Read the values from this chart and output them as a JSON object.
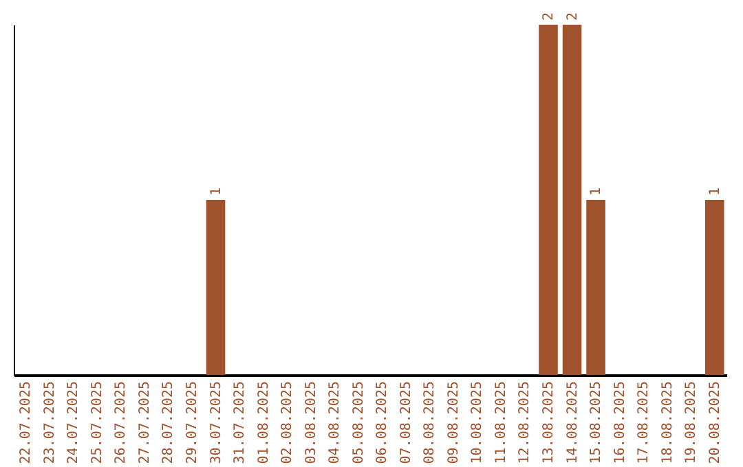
{
  "chart_data": {
    "type": "bar",
    "categories": [
      "22.07.2025",
      "23.07.2025",
      "24.07.2025",
      "25.07.2025",
      "26.07.2025",
      "27.07.2025",
      "28.07.2025",
      "29.07.2025",
      "30.07.2025",
      "31.07.2025",
      "01.08.2025",
      "02.08.2025",
      "03.08.2025",
      "04.08.2025",
      "05.08.2025",
      "06.08.2025",
      "07.08.2025",
      "08.08.2025",
      "09.08.2025",
      "10.08.2025",
      "11.08.2025",
      "12.08.2025",
      "13.08.2025",
      "14.08.2025",
      "15.08.2025",
      "16.08.2025",
      "17.08.2025",
      "18.08.2025",
      "19.08.2025",
      "20.08.2025"
    ],
    "values": [
      0,
      0,
      0,
      0,
      0,
      0,
      0,
      0,
      1,
      0,
      0,
      0,
      0,
      0,
      0,
      0,
      0,
      0,
      0,
      0,
      0,
      0,
      2,
      2,
      1,
      0,
      0,
      0,
      0,
      1
    ],
    "value_labels": [
      null,
      null,
      null,
      null,
      null,
      null,
      null,
      null,
      "1",
      null,
      null,
      null,
      null,
      null,
      null,
      null,
      null,
      null,
      null,
      null,
      null,
      null,
      "2",
      "2",
      "1",
      null,
      null,
      null,
      null,
      "1"
    ],
    "color": "#a0522d",
    "ylim": [
      0,
      2
    ],
    "tick_labels": "x",
    "grid": false
  }
}
